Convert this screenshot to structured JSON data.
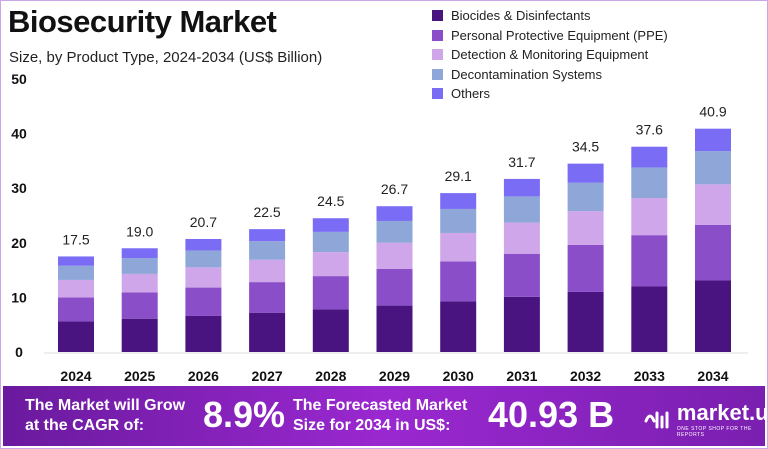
{
  "title": "Biosecurity Market",
  "subtitle": "Size, by Product Type, 2024-2034 (US$ Billion)",
  "banner": {
    "cagr_text": "The Market will Grow at the CAGR of:",
    "cagr_value": "8.9%",
    "forecast_text": "The Forecasted Market Size for 2034 in US$:",
    "forecast_value": "40.93 B",
    "logo_text": "market.us",
    "logo_tagline": "ONE STOP SHOP FOR THE REPORTS"
  },
  "chart_data": {
    "type": "bar",
    "stacked": true,
    "categories": [
      "2024",
      "2025",
      "2026",
      "2027",
      "2028",
      "2029",
      "2030",
      "2031",
      "2032",
      "2033",
      "2034"
    ],
    "totals": [
      "17.5",
      "19.0",
      "20.7",
      "22.5",
      "24.5",
      "26.7",
      "29.1",
      "31.7",
      "34.5",
      "37.6",
      "40.9"
    ],
    "ylim": [
      0,
      50
    ],
    "yticks": [
      "0",
      "10",
      "20",
      "30",
      "40",
      "50"
    ],
    "grid": false,
    "legend_position": "top-right",
    "series": [
      {
        "name": "Biocides & Disinfectants",
        "color": "#4a1480",
        "values": [
          5.6,
          6.1,
          6.6,
          7.2,
          7.8,
          8.5,
          9.3,
          10.1,
          11.0,
          12.0,
          13.1
        ]
      },
      {
        "name": "Personal Protective Equipment (PPE)",
        "color": "#8a4fc8",
        "values": [
          4.4,
          4.8,
          5.2,
          5.6,
          6.1,
          6.7,
          7.3,
          7.9,
          8.6,
          9.4,
          10.2
        ]
      },
      {
        "name": "Detection & Monitoring Equipment",
        "color": "#d0a6ea",
        "values": [
          3.2,
          3.4,
          3.7,
          4.1,
          4.4,
          4.8,
          5.2,
          5.7,
          6.2,
          6.8,
          7.4
        ]
      },
      {
        "name": "Decontamination Systems",
        "color": "#8fa6d8",
        "values": [
          2.6,
          2.9,
          3.1,
          3.4,
          3.7,
          4.0,
          4.4,
          4.8,
          5.2,
          5.6,
          6.1
        ]
      },
      {
        "name": "Others",
        "color": "#7a6cf5",
        "values": [
          1.7,
          1.8,
          2.1,
          2.2,
          2.5,
          2.7,
          2.9,
          3.2,
          3.5,
          3.8,
          4.1
        ]
      }
    ]
  }
}
